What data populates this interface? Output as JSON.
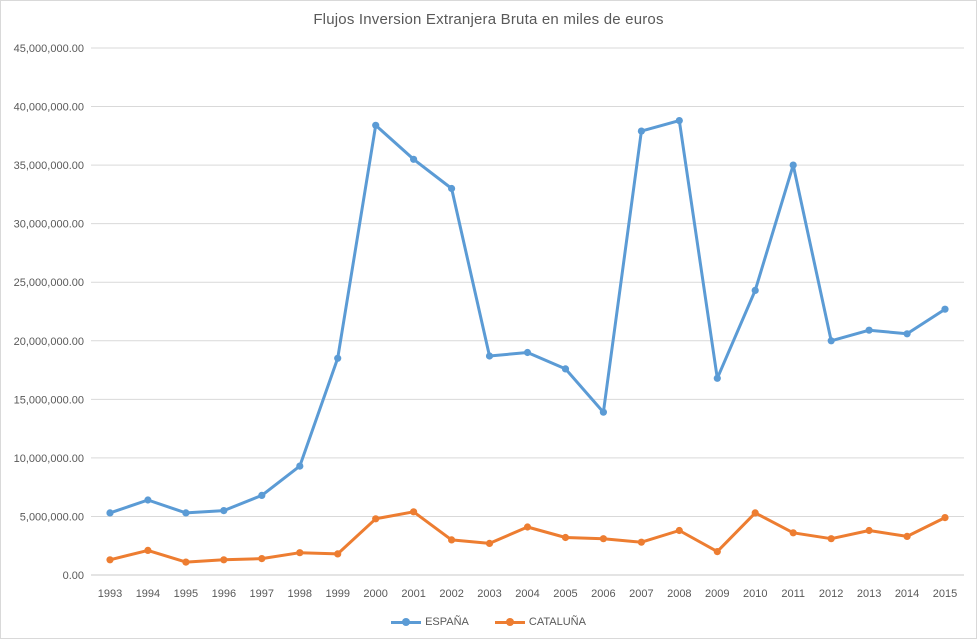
{
  "chart_data": {
    "type": "line",
    "title": "Flujos Inversion Extranjera Bruta en miles de euros",
    "x": [
      1993,
      1994,
      1995,
      1996,
      1997,
      1998,
      1999,
      2000,
      2001,
      2002,
      2003,
      2004,
      2005,
      2006,
      2007,
      2008,
      2009,
      2010,
      2011,
      2012,
      2013,
      2014,
      2015
    ],
    "series": [
      {
        "name": "ESPAÑA",
        "color": "#5B9BD5",
        "values": [
          5300000,
          6400000,
          5300000,
          5500000,
          6800000,
          9300000,
          18500000,
          38400000,
          35500000,
          33000000,
          18700000,
          19000000,
          17600000,
          13900000,
          37900000,
          38800000,
          16800000,
          24300000,
          35000000,
          20000000,
          20900000,
          20600000,
          22700000
        ]
      },
      {
        "name": "CATALUÑA",
        "color": "#ED7D31",
        "values": [
          1300000,
          2100000,
          1100000,
          1300000,
          1400000,
          1900000,
          1800000,
          4800000,
          5400000,
          3000000,
          2700000,
          4100000,
          3200000,
          3100000,
          2800000,
          3800000,
          2000000,
          5300000,
          3600000,
          3100000,
          3800000,
          3300000,
          4900000
        ]
      }
    ],
    "xlabel": "",
    "ylabel": "",
    "ylim": [
      0,
      45000000
    ],
    "ytick_step": 5000000,
    "ytick_labels": [
      "0.00",
      "5,000,000.00",
      "10,000,000.00",
      "15,000,000.00",
      "20,000,000.00",
      "25,000,000.00",
      "30,000,000.00",
      "35,000,000.00",
      "40,000,000.00",
      "45,000,000.00"
    ],
    "grid": true,
    "legend_position": "bottom",
    "colors": {
      "axis_text": "#595959",
      "gridline": "#D9D9D9",
      "axis_line": "#C9C9C9",
      "title_text": "#595959",
      "background": "#FFFFFF",
      "border": "#D9D9D9"
    }
  }
}
